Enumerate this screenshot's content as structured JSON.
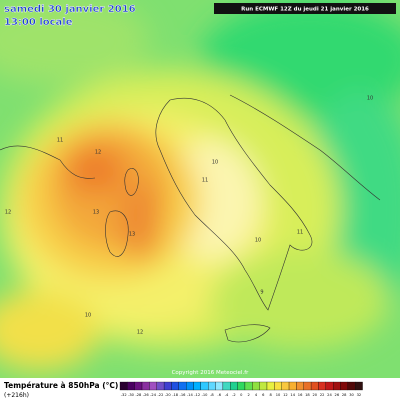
{
  "header": {
    "date": "samedi 30 janvier 2016",
    "time": "13:00 locale",
    "run": "Run ECMWF 12Z du jeudi 21 janvier 2016"
  },
  "map": {
    "copyright": "Copyright 2016 Meteociel.fr",
    "contour_labels": [
      "12",
      "13",
      "13",
      "11",
      "10",
      "12",
      "11",
      "10",
      "10",
      "9",
      "12",
      "10",
      "11"
    ]
  },
  "footer": {
    "title": "Température à 850hPa (°C)",
    "lead": "(+216h)",
    "scale": [
      "-32",
      "-30",
      "-28",
      "-26",
      "-24",
      "-22",
      "-20",
      "-18",
      "-16",
      "-14",
      "-12",
      "-10",
      "-8",
      "-6",
      "-4",
      "-2",
      "0",
      "2",
      "4",
      "6",
      "8",
      "10",
      "12",
      "14",
      "16",
      "18",
      "20",
      "22",
      "24",
      "26",
      "28",
      "30",
      "32"
    ]
  }
}
